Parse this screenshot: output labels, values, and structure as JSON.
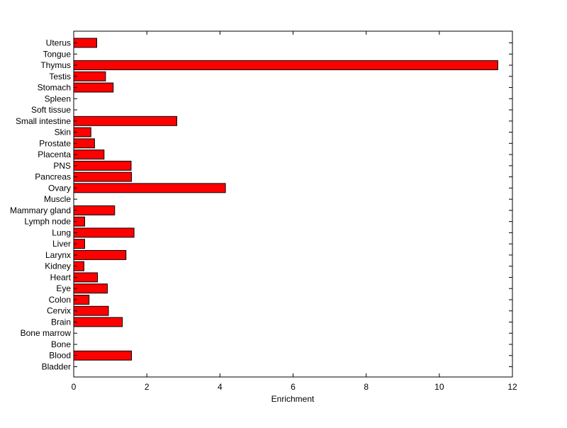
{
  "chart_data": {
    "type": "bar",
    "orientation": "horizontal",
    "xlabel": "Enrichment",
    "ylabel": "",
    "xlim": [
      0,
      12
    ],
    "xticks": [
      0,
      2,
      4,
      6,
      8,
      10,
      12
    ],
    "grid": false,
    "bar_color": "#ff0000",
    "bar_edge_color": "#000000",
    "categories": [
      "Uterus",
      "Tongue",
      "Thymus",
      "Testis",
      "Stomach",
      "Spleen",
      "Soft tissue",
      "Small intestine",
      "Skin",
      "Prostate",
      "Placenta",
      "PNS",
      "Pancreas",
      "Ovary",
      "Muscle",
      "Mammary gland",
      "Lymph node",
      "Lung",
      "Liver",
      "Larynx",
      "Kidney",
      "Heart",
      "Eye",
      "Colon",
      "Cervix",
      "Brain",
      "Bone marrow",
      "Bone",
      "Blood",
      "Bladder"
    ],
    "values": [
      0.63,
      0,
      11.6,
      0.87,
      1.08,
      0,
      0,
      2.82,
      0.47,
      0.57,
      0.83,
      1.57,
      1.58,
      4.15,
      0,
      1.12,
      0.3,
      1.65,
      0.3,
      1.43,
      0.28,
      0.65,
      0.92,
      0.42,
      0.95,
      1.33,
      0,
      0,
      1.58,
      0
    ]
  }
}
